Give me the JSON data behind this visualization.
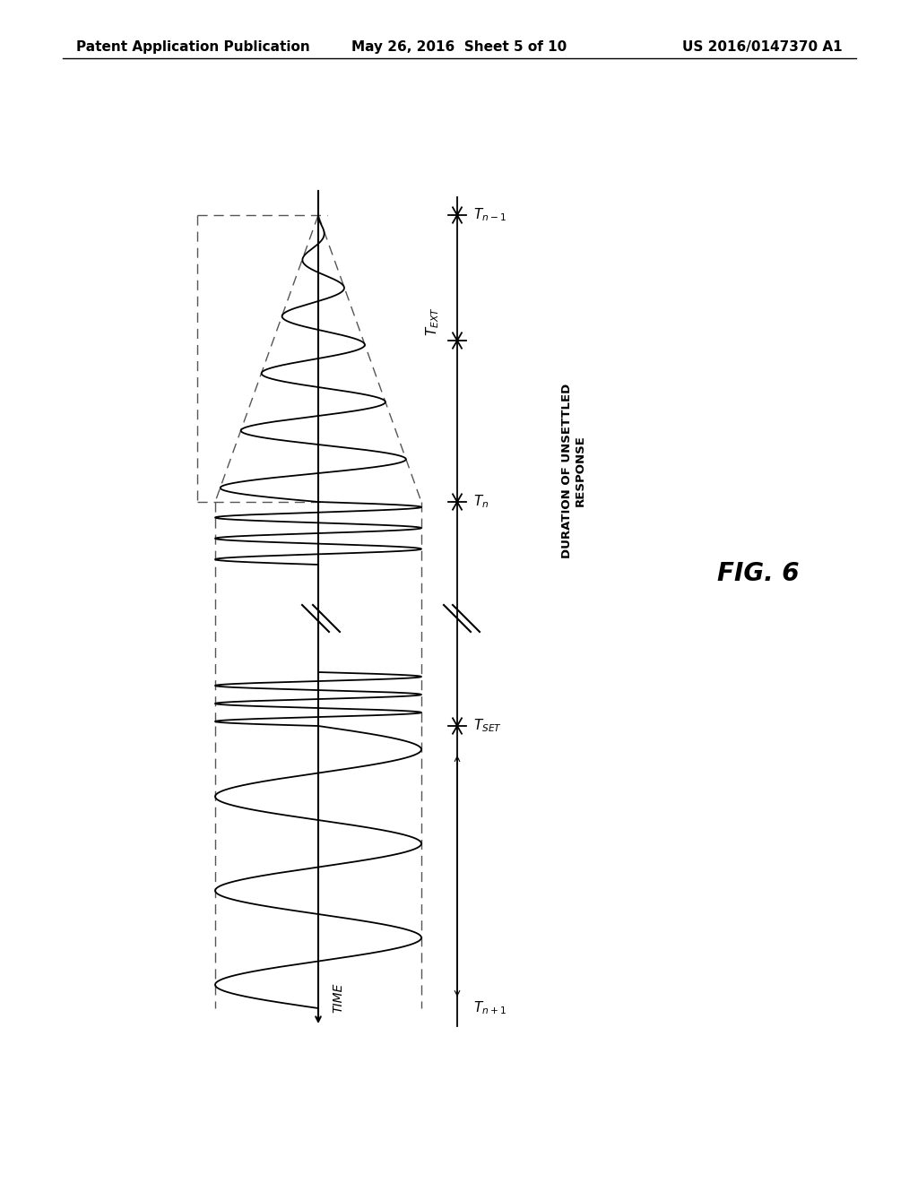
{
  "title_left": "Patent Application Publication",
  "title_mid": "May 26, 2016  Sheet 5 of 10",
  "title_right": "US 2016/0147370 A1",
  "fig_label": "FIG. 6",
  "background_color": "#ffffff",
  "line_color": "#000000",
  "dashed_color": "#555555",
  "text_color": "#000000",
  "header_fontsize": 11,
  "fig_label_fontsize": 20,
  "annotation_fontsize": 11,
  "note": "Diagram is landscape waveform rotated 90deg CCW on portrait page. Time axis is horizontal in landscape, waveforms oscillate vertically. Key x positions in landscape: tn1=0, text_pos=1.5, tn=4.5, tset=7.0, tn_plus1=11.0. Center y=0, amp=1.0."
}
